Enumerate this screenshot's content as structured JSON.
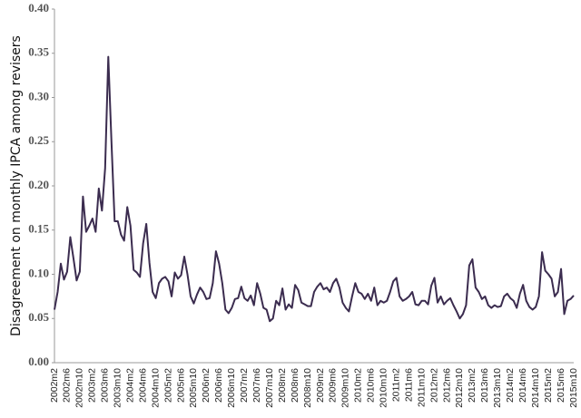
{
  "chart_data": {
    "type": "line",
    "y_label": "Disagreement on monthly IPCA among revisers",
    "categories": [
      "2002m2",
      null,
      null,
      null,
      "2002m6",
      null,
      null,
      null,
      "2002m10",
      null,
      null,
      null,
      "2003m2",
      null,
      null,
      null,
      "2003m6",
      null,
      null,
      null,
      "2003m10",
      null,
      null,
      null,
      "2004m2",
      null,
      null,
      null,
      "2004m6",
      null,
      null,
      null,
      "2004m10",
      null,
      null,
      null,
      "2005m2",
      null,
      null,
      null,
      "2005m6",
      null,
      null,
      null,
      "2005m10",
      null,
      null,
      null,
      "2006m2",
      null,
      null,
      null,
      "2006m6",
      null,
      null,
      null,
      "2006m10",
      null,
      null,
      null,
      "2007m2",
      null,
      null,
      null,
      "2007m6",
      null,
      null,
      null,
      "2007m10",
      null,
      null,
      null,
      "2008m2",
      null,
      null,
      null,
      "2008m6",
      null,
      null,
      null,
      "2008m10",
      null,
      null,
      null,
      "2009m2",
      null,
      null,
      null,
      "2009m6",
      null,
      null,
      null,
      "2009m10",
      null,
      null,
      null,
      "2010m2",
      null,
      null,
      null,
      "2010m6",
      null,
      null,
      null,
      "2010m10",
      null,
      null,
      null,
      "2011m2",
      null,
      null,
      null,
      "2011m6",
      null,
      null,
      null,
      "2011m10",
      null,
      null,
      null,
      "2012m2",
      null,
      null,
      null,
      "2012m6",
      null,
      null,
      null,
      "2012m10",
      null,
      null,
      null,
      "2013m2",
      null,
      null,
      null,
      "2013m6",
      null,
      null,
      null,
      "2013m10",
      null,
      null,
      null,
      "2014m2",
      null,
      null,
      null,
      "2014m6",
      null,
      null,
      null,
      "2014m10",
      null,
      null,
      null,
      "2015m2",
      null,
      null,
      null,
      "2015m6",
      null,
      null,
      null,
      "2015m10"
    ],
    "series": [
      {
        "name": "Disagreement",
        "color": "#3b2c4f",
        "values": [
          0.06,
          0.08,
          0.112,
          0.094,
          0.103,
          0.142,
          0.118,
          0.093,
          0.103,
          0.188,
          0.148,
          0.155,
          0.163,
          0.148,
          0.197,
          0.172,
          0.22,
          0.346,
          0.25,
          0.16,
          0.16,
          0.145,
          0.138,
          0.176,
          0.155,
          0.105,
          0.102,
          0.097,
          0.135,
          0.157,
          0.113,
          0.08,
          0.073,
          0.09,
          0.095,
          0.097,
          0.092,
          0.075,
          0.102,
          0.095,
          0.099,
          0.12,
          0.1,
          0.075,
          0.067,
          0.077,
          0.085,
          0.08,
          0.072,
          0.073,
          0.09,
          0.126,
          0.112,
          0.09,
          0.06,
          0.056,
          0.062,
          0.072,
          0.073,
          0.086,
          0.073,
          0.07,
          0.076,
          0.065,
          0.09,
          0.078,
          0.062,
          0.06,
          0.047,
          0.05,
          0.07,
          0.065,
          0.084,
          0.06,
          0.066,
          0.062,
          0.088,
          0.082,
          0.068,
          0.066,
          0.064,
          0.064,
          0.08,
          0.086,
          0.09,
          0.083,
          0.085,
          0.08,
          0.09,
          0.095,
          0.085,
          0.068,
          0.062,
          0.058,
          0.075,
          0.09,
          0.08,
          0.078,
          0.072,
          0.078,
          0.07,
          0.085,
          0.065,
          0.07,
          0.068,
          0.07,
          0.08,
          0.092,
          0.096,
          0.075,
          0.07,
          0.072,
          0.075,
          0.08,
          0.066,
          0.065,
          0.07,
          0.07,
          0.066,
          0.087,
          0.096,
          0.068,
          0.075,
          0.066,
          0.07,
          0.073,
          0.065,
          0.058,
          0.05,
          0.055,
          0.065,
          0.11,
          0.117,
          0.085,
          0.08,
          0.072,
          0.075,
          0.065,
          0.062,
          0.065,
          0.063,
          0.064,
          0.075,
          0.078,
          0.073,
          0.07,
          0.062,
          0.078,
          0.088,
          0.07,
          0.063,
          0.06,
          0.063,
          0.075,
          0.125,
          0.104,
          0.1,
          0.095,
          0.075,
          0.08,
          0.106,
          0.055,
          0.07,
          0.072,
          0.076
        ]
      }
    ],
    "ylim": [
      0,
      0.4
    ],
    "yticks": [
      {
        "value": 0,
        "label": "0.00"
      },
      {
        "value": 0.05,
        "label": "0.05"
      },
      {
        "value": 0.1,
        "label": "0.10"
      },
      {
        "value": 0.15,
        "label": "0.15"
      },
      {
        "value": 0.2,
        "label": "0.20"
      },
      {
        "value": 0.25,
        "label": "0.25"
      },
      {
        "value": 0.3,
        "label": "0.30"
      },
      {
        "value": 0.35,
        "label": "0.35"
      },
      {
        "value": 0.4,
        "label": "0.40"
      }
    ],
    "grid": false
  }
}
